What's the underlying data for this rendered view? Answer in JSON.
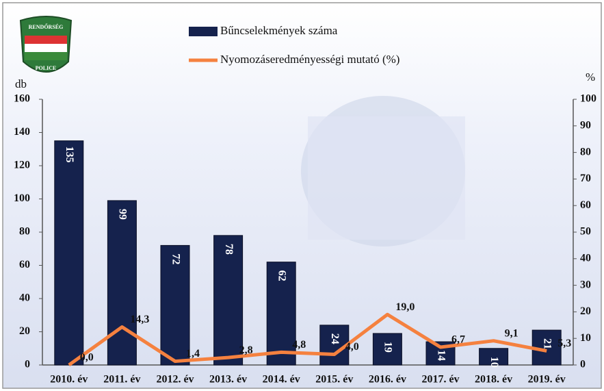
{
  "logo": {
    "top": "RENDŐRSÉG",
    "bottom": "POLICE"
  },
  "chart_data": {
    "type": "bar",
    "y_label": "db",
    "y2_label": "%",
    "categories": [
      "2010. év",
      "2011. év",
      "2012. év",
      "2013. év",
      "2014. év",
      "2015. év",
      "2016. év",
      "2017. év",
      "2018. év",
      "2019. év"
    ],
    "series": [
      {
        "name": "Bűncselekmények száma",
        "type": "bar",
        "color": "#15224d",
        "values": [
          135,
          99,
          72,
          78,
          62,
          24,
          19,
          14,
          10,
          21
        ]
      },
      {
        "name": "Nyomozáseredményességi mutató (%)",
        "type": "line",
        "axis": "y2",
        "color": "#f5813f",
        "values": [
          0.0,
          14.3,
          1.4,
          2.8,
          4.8,
          4.0,
          19.0,
          6.7,
          9.1,
          5.3
        ],
        "value_labels": [
          "0,0",
          "14,3",
          "1,4",
          "2,8",
          "4,8",
          "4,0",
          "19,0",
          "6,7",
          "9,1",
          "5,3"
        ]
      }
    ],
    "ylim": [
      0,
      160
    ],
    "yticks": [
      0,
      20,
      40,
      60,
      80,
      100,
      120,
      140,
      160
    ],
    "y2lim": [
      0,
      100
    ],
    "y2ticks": [
      0,
      10,
      20,
      30,
      40,
      50,
      60,
      70,
      80,
      90,
      100
    ],
    "legend": "top"
  }
}
